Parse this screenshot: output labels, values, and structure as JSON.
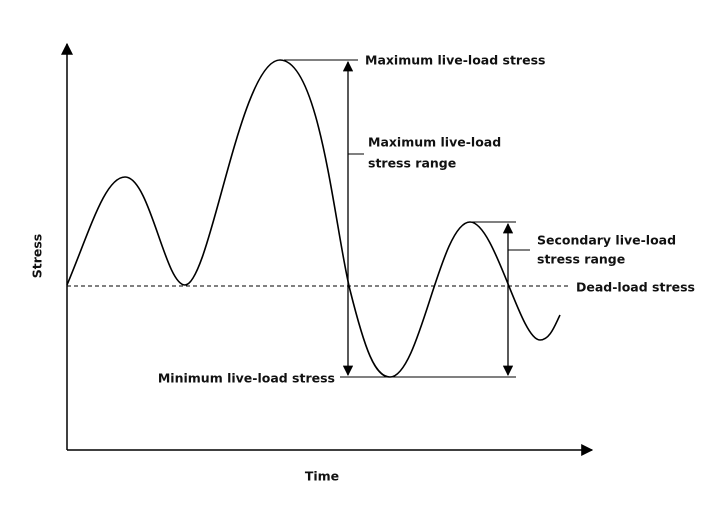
{
  "diagram": {
    "y_axis_label": "Stress",
    "x_axis_label": "Time",
    "labels": {
      "max_stress": "Maximum live-load stress",
      "max_range": [
        "Maximum live-load",
        "stress range"
      ],
      "secondary_range": [
        "Secondary live-load",
        "stress range"
      ],
      "dead_load": "Dead-load stress",
      "min_stress": "Minimum live-load stress"
    }
  }
}
